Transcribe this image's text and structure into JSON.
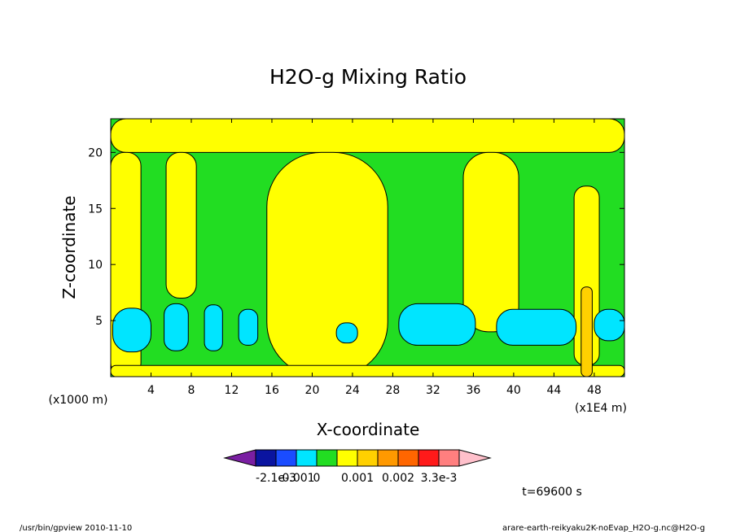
{
  "chart_data": {
    "type": "heatmap",
    "title": "H2O-g Mixing Ratio",
    "xlabel": "X-coordinate",
    "ylabel": "Z-coordinate",
    "x_units_left": "(x1000 m)",
    "x_units_right": "(x1E4 m)",
    "xlim": [
      0,
      51
    ],
    "ylim": [
      0,
      23
    ],
    "x_ticks": [
      4,
      8,
      12,
      16,
      20,
      24,
      28,
      32,
      36,
      40,
      44,
      48
    ],
    "y_ticks": [
      5,
      10,
      15,
      20
    ],
    "grid": false,
    "colorbar": {
      "colors": [
        "#7a1fa2",
        "#0a14a0",
        "#1a4cff",
        "#00e5ff",
        "#22dd22",
        "#ffff00",
        "#ffd000",
        "#ff9900",
        "#ff6600",
        "#ff1a1a",
        "#ff7f7f",
        "#ffc0cb"
      ],
      "tick_labels": [
        "-2.1e-3",
        "-0.001",
        "0",
        "0.001",
        "0.002",
        "3.3e-3"
      ]
    },
    "background_level": "#22dd22",
    "regions": [
      {
        "level": "#ffff00",
        "x": [
          0,
          51
        ],
        "y": [
          20,
          23
        ]
      },
      {
        "level": "#ffff00",
        "x": [
          0,
          3
        ],
        "y": [
          0,
          20
        ]
      },
      {
        "level": "#ffff00",
        "x": [
          5.5,
          8.5
        ],
        "y": [
          7,
          20
        ]
      },
      {
        "level": "#ffff00",
        "x": [
          15.5,
          27.5
        ],
        "y": [
          0,
          20
        ]
      },
      {
        "level": "#ffff00",
        "x": [
          35,
          40.5
        ],
        "y": [
          4,
          20
        ]
      },
      {
        "level": "#ffff00",
        "x": [
          46,
          48.5
        ],
        "y": [
          1,
          17
        ]
      },
      {
        "level": "#ffff00",
        "x": [
          0,
          51
        ],
        "y": [
          0,
          1
        ]
      },
      {
        "level": "#00e5ff",
        "x": [
          0.2,
          4
        ],
        "y": [
          2.2,
          6.1
        ]
      },
      {
        "level": "#00e5ff",
        "x": [
          5.3,
          7.7
        ],
        "y": [
          2.3,
          6.5
        ]
      },
      {
        "level": "#00e5ff",
        "x": [
          9.3,
          11.1
        ],
        "y": [
          2.3,
          6.4
        ]
      },
      {
        "level": "#00e5ff",
        "x": [
          12.7,
          14.6
        ],
        "y": [
          2.8,
          6
        ]
      },
      {
        "level": "#00e5ff",
        "x": [
          22.4,
          24.5
        ],
        "y": [
          3,
          4.8
        ]
      },
      {
        "level": "#00e5ff",
        "x": [
          28.6,
          36.2
        ],
        "y": [
          2.8,
          6.5
        ]
      },
      {
        "level": "#00e5ff",
        "x": [
          38.3,
          46.2
        ],
        "y": [
          2.8,
          6
        ]
      },
      {
        "level": "#00e5ff",
        "x": [
          48,
          51
        ],
        "y": [
          3.2,
          6
        ]
      },
      {
        "level": "#ffd000",
        "x": [
          46.7,
          47.8
        ],
        "y": [
          0,
          8
        ]
      }
    ],
    "time_label": "t=69600 s"
  },
  "footer": {
    "left": "/usr/bin/gpview 2010-11-10",
    "right": "arare-earth-reikyaku2K-noEvap_H2O-g.nc@H2O-g"
  }
}
